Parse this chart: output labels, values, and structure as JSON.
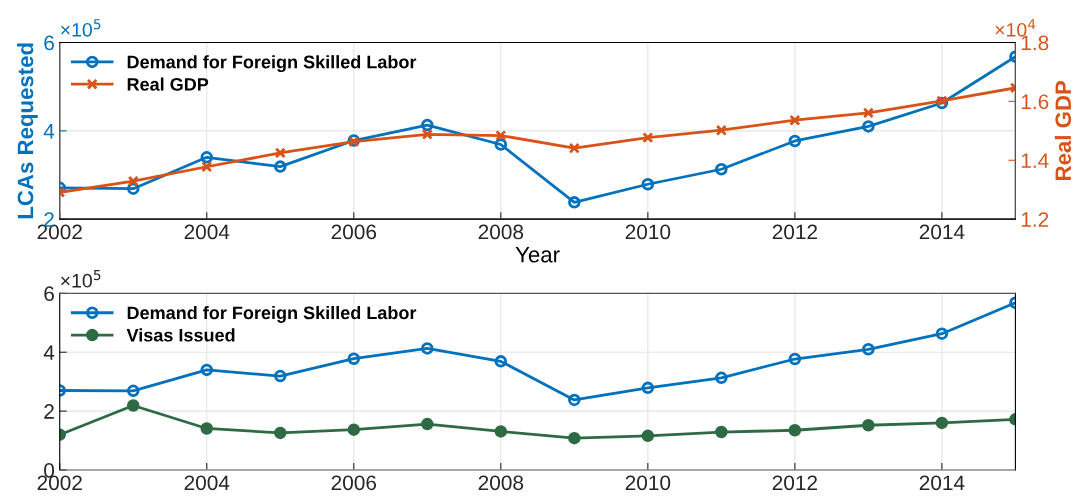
{
  "chart_data": [
    {
      "type": "line",
      "xlabel": "Year",
      "ylabel": "LCAs Requested",
      "y2label": "Real GDP",
      "x": [
        2002,
        2003,
        2004,
        2005,
        2006,
        2007,
        2008,
        2009,
        2010,
        2011,
        2012,
        2013,
        2014,
        2015
      ],
      "series": [
        {
          "name": "Demand for Foreign Skilled Labor",
          "color": "#0072bd",
          "marker": "circle",
          "values": [
            2.71,
            2.69,
            3.4,
            3.19,
            3.78,
            4.13,
            3.69,
            2.38,
            2.79,
            3.13,
            3.77,
            4.1,
            4.63,
            5.68
          ]
        },
        {
          "name": "Real GDP",
          "color": "#d95319",
          "marker": "cross",
          "axis": "y2",
          "values": [
            1.291,
            1.329,
            1.378,
            1.425,
            1.463,
            1.488,
            1.484,
            1.441,
            1.477,
            1.502,
            1.536,
            1.561,
            1.602,
            1.646
          ]
        }
      ],
      "xlim": [
        2002,
        2015
      ],
      "xticks": [
        2002,
        2004,
        2006,
        2008,
        2010,
        2012,
        2014
      ],
      "ylim": [
        2,
        6
      ],
      "yticks": [
        2,
        4,
        6
      ],
      "y2lim": [
        1.2,
        1.8
      ],
      "y2ticks": [
        1.2,
        1.4,
        1.6,
        1.8
      ],
      "annotations": [
        "×10$^{5}$",
        "×10$^{4}$"
      ],
      "grid": true,
      "legend": "top left"
    },
    {
      "type": "line",
      "x": [
        2002,
        2003,
        2004,
        2005,
        2006,
        2007,
        2008,
        2009,
        2010,
        2011,
        2012,
        2013,
        2014,
        2015
      ],
      "series": [
        {
          "name": "Demand for Foreign Skilled Labor",
          "color": "#0072bd",
          "marker": "circle",
          "values": [
            2.7,
            2.69,
            3.4,
            3.19,
            3.78,
            4.13,
            3.69,
            2.38,
            2.79,
            3.13,
            3.77,
            4.1,
            4.63,
            5.68
          ]
        },
        {
          "name": "Visas Issued",
          "color": "#2e6b45",
          "marker": "circle",
          "values": [
            1.2,
            2.19,
            1.41,
            1.26,
            1.37,
            1.56,
            1.31,
            1.08,
            1.16,
            1.29,
            1.35,
            1.52,
            1.6,
            1.72
          ]
        }
      ],
      "xlim": [
        2002,
        2015
      ],
      "xticks": [
        2002,
        2004,
        2006,
        2008,
        2010,
        2012,
        2014
      ],
      "ylim": [
        0,
        6
      ],
      "yticks": [
        0,
        2,
        4,
        6
      ],
      "annotations": [
        "×10$^{5}$"
      ],
      "grid": true,
      "legend": "top left"
    }
  ]
}
